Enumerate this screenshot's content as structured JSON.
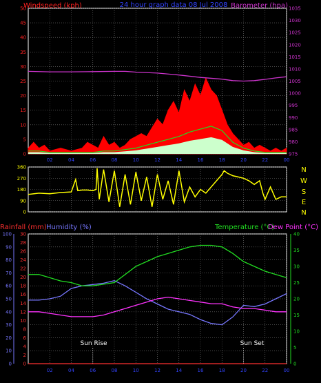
{
  "colors": {
    "background": "#000000",
    "frame": "#ffffff",
    "grid": "#7a7a7a",
    "wind": "#ff2020",
    "gust": "#ff0000",
    "barometer": "#cc33cc",
    "direction": "#ffff00",
    "rainfall": "#ff3030",
    "humidity": "#7777ff",
    "temperature": "#22dd22",
    "dewpoint": "#ff33ff",
    "lightgreen": "#ccffcc",
    "title": "#3344ff"
  },
  "top": {
    "title": "24 hour graph data  08 Jul 2008",
    "wind_label": "Windspeed (kph)",
    "baro_label": "Barometer (hpa)"
  },
  "mid": {
    "compass": [
      "N",
      "W",
      "S",
      "E",
      "N"
    ]
  },
  "bottom": {
    "rain_label": "Rainfall (mm)",
    "humidity_label": "Humidity (%)",
    "temp_label": "Temperature (°C)",
    "dew_label": "Dew Point (°C)",
    "sunrise_label": "Sun Rise",
    "sunset_label": "Sun Set"
  },
  "chart_data": [
    {
      "type": "line",
      "title": "24 hour graph data  08 Jul 2008",
      "x_ticks": [
        "02",
        "04",
        "06",
        "08",
        "10",
        "12",
        "14",
        "16",
        "18",
        "20",
        "22",
        "00"
      ],
      "y_left_ticks": [
        "0",
        "5",
        "10",
        "15",
        "20",
        "25",
        "30",
        "35",
        "40",
        "45",
        "50"
      ],
      "y_right_ticks": [
        "975",
        "980",
        "985",
        "990",
        "995",
        "1000",
        "1005",
        "1010",
        "1015",
        "1020",
        "1025",
        "1030",
        "1035"
      ],
      "ylim_left": [
        0,
        50
      ],
      "ylim_right": [
        975,
        1035
      ],
      "xlim_hours": [
        0,
        24
      ],
      "series": [
        {
          "name": "Windspeed (kph)",
          "axis": "left",
          "hours": [
            0,
            1,
            2,
            3,
            4,
            5,
            6,
            7,
            8,
            9,
            10,
            11,
            12,
            13,
            14,
            15,
            16,
            17,
            18,
            19,
            20,
            21,
            22,
            23,
            24
          ],
          "values": [
            1,
            1,
            0.5,
            0.5,
            0.5,
            0.5,
            0.5,
            1,
            1,
            1.5,
            2,
            3,
            4,
            5,
            6,
            7.5,
            8.5,
            9.5,
            8,
            4,
            2,
            1,
            0.5,
            0.5,
            0.5
          ]
        },
        {
          "name": "Gust",
          "axis": "left",
          "hours": [
            0,
            0.5,
            1,
            1.5,
            2,
            3,
            4,
            5,
            5.5,
            6,
            6.5,
            7,
            7.5,
            8,
            8.5,
            9,
            9.5,
            10,
            10.5,
            11,
            11.5,
            12,
            12.5,
            13,
            13.5,
            14,
            14.5,
            15,
            15.5,
            16,
            16.5,
            17,
            17.5,
            18,
            18.5,
            19,
            19.5,
            20,
            20.5,
            21,
            21.5,
            22,
            22.5,
            23,
            23.5,
            24
          ],
          "values": [
            2,
            4,
            2,
            3,
            1,
            2,
            1,
            2,
            4,
            3,
            2,
            6,
            3,
            4,
            2,
            3,
            5,
            6,
            7,
            6,
            9,
            12,
            10,
            15,
            18,
            14,
            22,
            18,
            24,
            20,
            26,
            22,
            20,
            15,
            10,
            7,
            5,
            3,
            4,
            2,
            3,
            2,
            1,
            2,
            1,
            2
          ]
        },
        {
          "name": "Barometer (hpa)",
          "axis": "right",
          "hours": [
            0,
            2,
            4,
            6,
            8,
            9,
            10,
            12,
            14,
            16,
            18,
            19,
            20,
            21,
            22,
            23,
            24
          ],
          "values": [
            1009,
            1008.8,
            1008.8,
            1008.9,
            1009,
            1009,
            1008.7,
            1008.3,
            1007.5,
            1006.5,
            1005.8,
            1005.2,
            1005,
            1005.2,
            1005.7,
            1006.3,
            1006.8
          ]
        }
      ]
    },
    {
      "type": "scatter",
      "title": "",
      "y_left_ticks": [
        "0",
        "90",
        "180",
        "270",
        "360"
      ],
      "y_right_labels": [
        "N",
        "W",
        "S",
        "E",
        "N"
      ],
      "ylim": [
        0,
        360
      ],
      "xlim_hours": [
        0,
        24
      ],
      "series": [
        {
          "name": "Wind Direction",
          "hours": [
            0,
            1,
            2,
            3,
            4,
            4.4,
            4.6,
            5,
            5.5,
            6,
            6.3,
            6.4,
            6.6,
            7,
            7.5,
            8,
            8.5,
            9,
            9.5,
            10,
            10.5,
            11,
            11.5,
            12,
            12.5,
            13,
            13.5,
            14,
            14.5,
            15,
            15.5,
            16,
            16.5,
            17,
            17.5,
            18,
            18.2,
            18.5,
            19,
            19.5,
            20,
            20.5,
            21,
            21.5,
            21.8,
            22,
            22.5,
            23,
            23.5,
            24
          ],
          "values": [
            140,
            150,
            145,
            155,
            160,
            260,
            170,
            175,
            175,
            170,
            180,
            350,
            100,
            340,
            80,
            330,
            40,
            300,
            60,
            320,
            90,
            280,
            40,
            300,
            100,
            250,
            60,
            330,
            80,
            200,
            120,
            180,
            150,
            200,
            250,
            300,
            330,
            310,
            290,
            280,
            270,
            250,
            220,
            250,
            150,
            100,
            200,
            100,
            120,
            120
          ]
        }
      ]
    },
    {
      "type": "line",
      "title": "",
      "x_ticks": [
        "02",
        "04",
        "06",
        "08",
        "10",
        "12",
        "14",
        "16",
        "18",
        "20",
        "22",
        "00"
      ],
      "y_humidity_ticks": [
        "0",
        "10",
        "20",
        "30",
        "40",
        "50",
        "60",
        "70",
        "80",
        "90",
        "100"
      ],
      "y_rain_ticks": [
        "0",
        "2",
        "4",
        "6",
        "8",
        "10",
        "12",
        "14",
        "16",
        "18",
        "20",
        "22",
        "24",
        "26",
        "28",
        "30"
      ],
      "y_temp_ticks": [
        "0",
        "5",
        "10",
        "15",
        "20",
        "25",
        "30",
        "35",
        "40"
      ],
      "ylim_humidity": [
        0,
        100
      ],
      "ylim_temp": [
        0,
        40
      ],
      "ylim_rain": [
        0,
        30
      ],
      "xlim_hours": [
        0,
        24
      ],
      "series": [
        {
          "name": "Rainfall (mm)",
          "axis": "rain",
          "hours": [
            0,
            24
          ],
          "values": [
            0,
            0
          ]
        },
        {
          "name": "Humidity (%)",
          "axis": "humidity",
          "hours": [
            0,
            1,
            2,
            3,
            4,
            5,
            6,
            7,
            8,
            9,
            10,
            11,
            12,
            13,
            14,
            15,
            16,
            17,
            18,
            19,
            20,
            21,
            22,
            23,
            24
          ],
          "values": [
            49,
            49,
            50,
            52,
            58,
            60,
            61,
            62,
            64,
            60,
            55,
            50,
            46,
            42,
            40,
            38,
            34,
            31,
            30,
            36,
            45,
            44,
            46,
            50,
            54
          ]
        },
        {
          "name": "Temperature (°C)",
          "axis": "temp",
          "hours": [
            0,
            1,
            2,
            3,
            4,
            5,
            6,
            7,
            8,
            9,
            10,
            11,
            12,
            13,
            14,
            15,
            16,
            17,
            18,
            19,
            20,
            21,
            22,
            23,
            24
          ],
          "values": [
            27.5,
            27.5,
            26.5,
            25.5,
            25,
            24,
            24,
            24.5,
            25,
            27.5,
            30,
            31.5,
            33,
            34,
            35,
            36,
            36.5,
            36.5,
            36,
            34,
            31.5,
            30,
            28.5,
            27.5,
            26.5
          ]
        },
        {
          "name": "Dew Point (°C)",
          "axis": "temp",
          "hours": [
            0,
            1,
            2,
            3,
            4,
            5,
            6,
            7,
            8,
            9,
            10,
            11,
            12,
            13,
            14,
            15,
            16,
            17,
            18,
            19,
            20,
            21,
            22,
            23,
            24
          ],
          "values": [
            16,
            16,
            15.5,
            15,
            14.5,
            14.5,
            14.5,
            15,
            16,
            17,
            18,
            19,
            20,
            20.5,
            20,
            19.5,
            19,
            18.5,
            18.5,
            17.5,
            17,
            17,
            16.5,
            16,
            16
          ]
        }
      ]
    }
  ]
}
